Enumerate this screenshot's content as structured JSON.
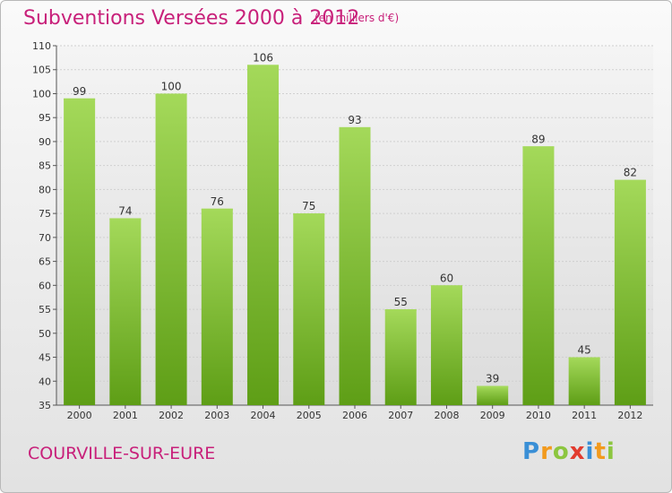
{
  "header": {
    "title": "Subventions Versées 2000 à 2012",
    "subtitle": "(en milliers d'€)"
  },
  "footer": {
    "commune": "COURVILLE-SUR-EURE",
    "logo": {
      "letters": [
        "P",
        "r",
        "o",
        "x",
        "i",
        "t",
        "i"
      ],
      "colors": [
        "#3a8fd6",
        "#f29a1d",
        "#8cc63f",
        "#e23b2e",
        "#3a8fd6",
        "#f29a1d",
        "#8cc63f"
      ]
    }
  },
  "chart_data": {
    "type": "bar",
    "title": "Subventions Versées 2000 à 2012",
    "subtitle": "(en milliers d'€)",
    "categories": [
      "2000",
      "2001",
      "2002",
      "2003",
      "2004",
      "2005",
      "2006",
      "2007",
      "2008",
      "2009",
      "2010",
      "2011",
      "2012"
    ],
    "values": [
      99,
      74,
      100,
      76,
      106,
      75,
      93,
      55,
      60,
      39,
      89,
      45,
      82
    ],
    "yticks": [
      35,
      40,
      45,
      50,
      55,
      60,
      65,
      70,
      75,
      80,
      85,
      90,
      95,
      100,
      105,
      110
    ],
    "ylim": [
      35,
      110
    ],
    "grid": true,
    "bar_color": "#7cc02e",
    "bar_color_light": "#a4d95a",
    "bar_color_dark": "#5e9e16"
  }
}
